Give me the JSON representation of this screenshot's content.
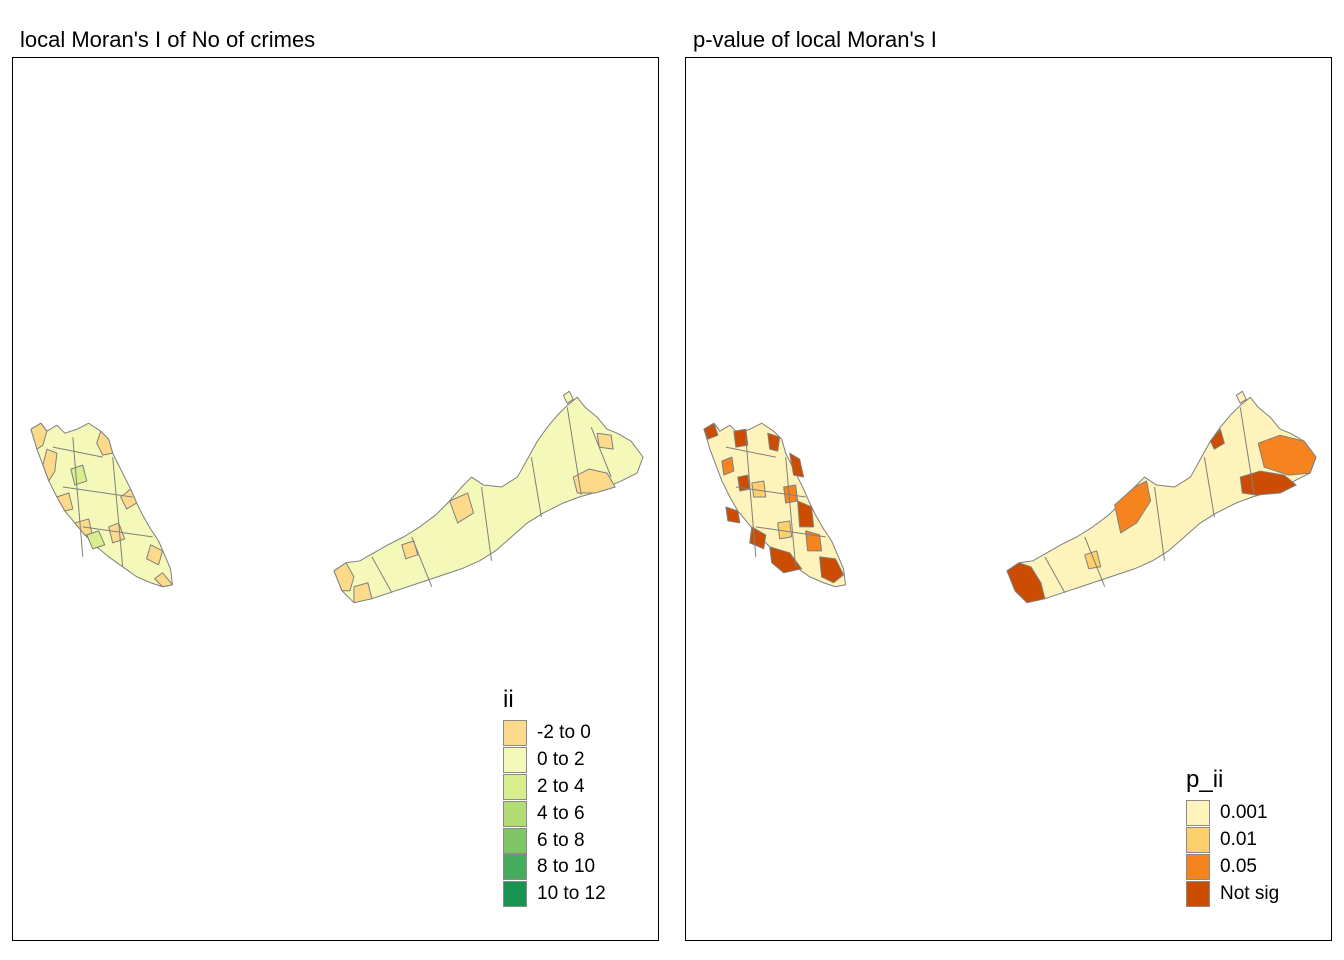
{
  "panels": [
    {
      "title": "local Moran's I of No of crimes",
      "legend": {
        "title": "ii",
        "items": [
          {
            "label": "-2 to 0",
            "color": "#fdd98a"
          },
          {
            "label": "0 to 2",
            "color": "#f4f8b8"
          },
          {
            "label": "2 to 4",
            "color": "#d8ee8c"
          },
          {
            "label": "4 to 6",
            "color": "#b0dc72"
          },
          {
            "label": "6 to 8",
            "color": "#80c564"
          },
          {
            "label": "8 to 10",
            "color": "#46ab5c"
          },
          {
            "label": "10 to 12",
            "color": "#189350"
          }
        ]
      }
    },
    {
      "title": "p-value of local Moran's I",
      "legend": {
        "title": "p_ii",
        "items": [
          {
            "label": "0.001",
            "color": "#fef3bb"
          },
          {
            "label": "0.01",
            "color": "#fdd06b"
          },
          {
            "label": "0.05",
            "color": "#f5841f"
          },
          {
            "label": "Not sig",
            "color": "#cc4c02"
          }
        ]
      }
    }
  ]
}
